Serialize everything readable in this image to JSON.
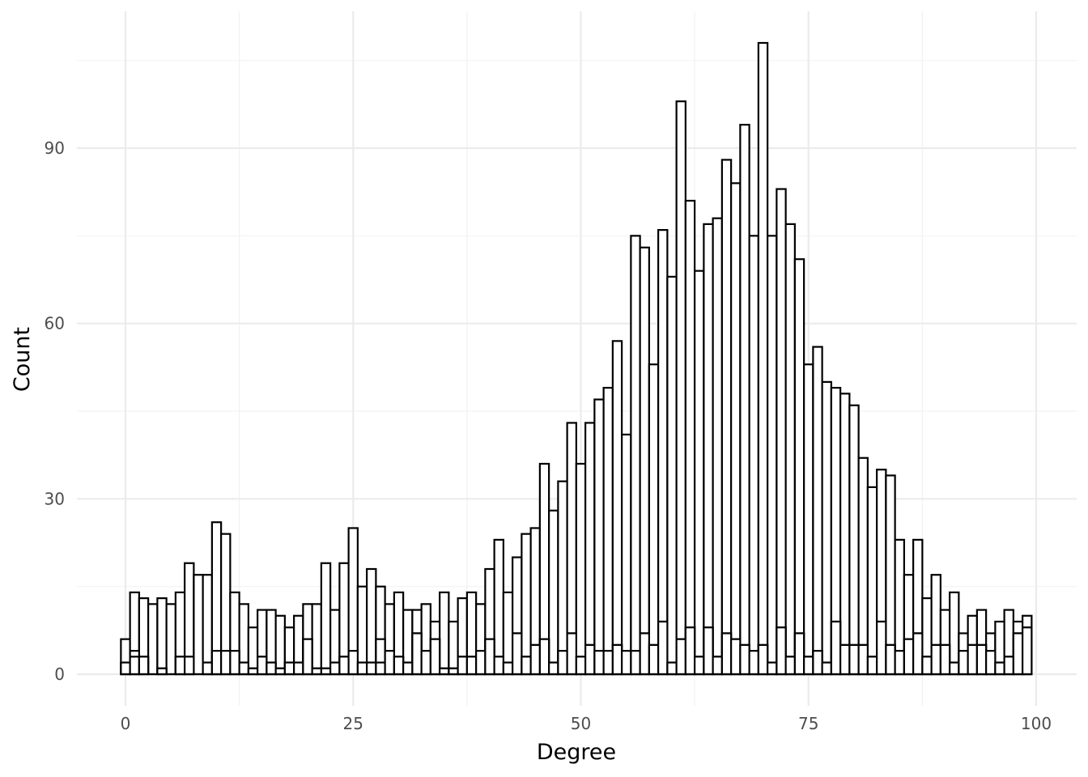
{
  "chart_data": {
    "type": "bar",
    "xlabel": "Degree",
    "ylabel": "Count",
    "xlim": [
      -5,
      102
    ],
    "ylim": [
      -4.5,
      113
    ],
    "x_ticks": [
      0,
      25,
      50,
      75,
      100
    ],
    "y_ticks": [
      0,
      30,
      60,
      90
    ],
    "x_minor_ticks": [
      12.5,
      37.5,
      62.5,
      87.5
    ],
    "y_minor_ticks": [
      15,
      45,
      75,
      105
    ],
    "x_tick_labels": [
      "0",
      "25",
      "50",
      "75",
      "100"
    ],
    "y_tick_labels": [
      "0",
      "30",
      "60",
      "90"
    ],
    "grid": true,
    "bar_fill": "#ffffff",
    "bar_outline": "#000000",
    "bin_width": 1,
    "x": [
      0,
      1,
      2,
      3,
      4,
      5,
      6,
      7,
      8,
      9,
      10,
      11,
      12,
      13,
      14,
      15,
      16,
      17,
      18,
      19,
      20,
      21,
      22,
      23,
      24,
      25,
      26,
      27,
      28,
      29,
      30,
      31,
      32,
      33,
      34,
      35,
      36,
      37,
      38,
      39,
      40,
      41,
      42,
      43,
      44,
      45,
      46,
      47,
      48,
      49,
      50,
      51,
      52,
      53,
      54,
      55,
      56,
      57,
      58,
      59,
      60,
      61,
      62,
      63,
      64,
      65,
      66,
      67,
      68,
      69,
      70,
      71,
      72,
      73,
      74,
      75,
      76,
      77,
      78,
      79,
      80,
      81,
      82,
      83,
      84,
      85,
      86,
      87,
      88,
      89,
      90,
      91,
      92,
      93,
      94,
      95,
      96,
      97,
      98,
      99
    ],
    "series": [
      {
        "values": [
          6,
          14,
          13,
          12,
          13,
          12,
          14,
          19,
          17,
          17,
          26,
          24,
          14,
          12,
          8,
          11,
          11,
          10,
          8,
          10,
          12,
          12,
          19,
          11,
          19,
          25,
          15,
          18,
          15,
          12,
          14,
          11,
          11,
          12,
          9,
          14,
          9,
          13,
          14,
          12,
          18,
          23,
          14,
          20,
          24,
          25,
          36,
          28,
          33,
          43,
          36,
          43,
          47,
          49,
          57,
          41,
          75,
          73,
          53,
          76,
          68,
          98,
          81,
          69,
          77,
          78,
          88,
          84,
          94,
          75,
          108,
          75,
          83,
          77,
          71,
          53,
          56,
          50,
          49,
          48,
          46,
          37,
          32,
          35,
          34,
          23,
          17,
          23,
          13,
          17,
          11,
          14,
          7,
          10,
          11,
          7,
          9,
          11,
          9,
          10
        ]
      },
      {
        "values": [
          2,
          4,
          3,
          0,
          1,
          0,
          3,
          3,
          0,
          2,
          4,
          4,
          4,
          2,
          1,
          3,
          2,
          1,
          2,
          2,
          6,
          1,
          1,
          2,
          3,
          4,
          2,
          2,
          6,
          4,
          3,
          2,
          7,
          4,
          6,
          1,
          1,
          3,
          3,
          4,
          6,
          3,
          2,
          7,
          3,
          5,
          6,
          2,
          4,
          7,
          3,
          5,
          4,
          4,
          5,
          4,
          4,
          7,
          5,
          9,
          2,
          6,
          8,
          3,
          8,
          3,
          7,
          6,
          5,
          4,
          5,
          2,
          8,
          3,
          7,
          3,
          4,
          2,
          9,
          5,
          5,
          5,
          3,
          9,
          5,
          4,
          6,
          7,
          3,
          5,
          5,
          2,
          4,
          5,
          5,
          4,
          2,
          3,
          7,
          8
        ]
      },
      {
        "values": [
          0,
          0,
          0,
          0,
          0,
          0,
          0,
          0,
          0,
          0,
          0,
          0,
          0,
          0,
          0,
          0,
          0,
          0,
          0,
          0,
          0,
          0,
          0,
          0,
          0,
          0,
          0,
          1,
          0,
          0,
          0,
          0,
          0,
          0,
          0,
          0,
          0,
          0,
          0,
          0,
          0,
          0,
          0,
          0,
          0,
          0,
          0,
          0,
          0,
          0,
          0,
          0,
          0,
          0,
          0,
          0,
          0,
          0,
          0,
          0,
          0,
          0,
          0,
          0,
          0,
          0,
          0,
          0,
          0,
          0,
          0,
          0,
          0,
          0,
          0,
          0,
          0,
          0,
          0,
          0,
          0,
          0,
          0,
          0,
          0,
          0,
          0,
          0,
          0,
          0,
          0,
          0,
          0,
          0,
          0,
          0,
          0,
          0,
          0,
          0
        ]
      },
      {
        "values": [
          0,
          0,
          0,
          0,
          0,
          0,
          0,
          0,
          0,
          0,
          0,
          0,
          0,
          0,
          0,
          0,
          0,
          0,
          0,
          0,
          0,
          0,
          0,
          0,
          0,
          0,
          0,
          0,
          0,
          0,
          0,
          0,
          0,
          0,
          0,
          0,
          0,
          0,
          0,
          0,
          0,
          0,
          0,
          0,
          0,
          0,
          0,
          0,
          0,
          0,
          0,
          0,
          0,
          0,
          0,
          0,
          0,
          0,
          0,
          0,
          0,
          0,
          0,
          0,
          0,
          0,
          0,
          0,
          0,
          0,
          0,
          0,
          0,
          0,
          0,
          0,
          0,
          0,
          0,
          0,
          0,
          0,
          0,
          0,
          0,
          0,
          0,
          0,
          0,
          0,
          0,
          0,
          0,
          0,
          0,
          0,
          0,
          0,
          0,
          0
        ]
      }
    ],
    "low_series": {
      "values": [
        0,
        0,
        0,
        0,
        0,
        0,
        0,
        0,
        0,
        0,
        0,
        0,
        0,
        0,
        0,
        0,
        0,
        0,
        0,
        0,
        0,
        0,
        0,
        0,
        0,
        0,
        0,
        0,
        0,
        0,
        0,
        0,
        0,
        0,
        0,
        0,
        0,
        0,
        0,
        0,
        0,
        0,
        0,
        0,
        0,
        0,
        0,
        0,
        0,
        0,
        0,
        0,
        0,
        0,
        0,
        0,
        0,
        0,
        0,
        0,
        0,
        0,
        0,
        0,
        0,
        0,
        0,
        0,
        0,
        0,
        0,
        0,
        0,
        0,
        0,
        0,
        0,
        0,
        0,
        0,
        0,
        0,
        0,
        0,
        0,
        0,
        0,
        0,
        0,
        0,
        0,
        0,
        0,
        0,
        0,
        0,
        0,
        0,
        0,
        0
      ]
    },
    "third_series": {
      "values": [
        2,
        3,
        3,
        0,
        1,
        0,
        3,
        3,
        0,
        2,
        4,
        4,
        4,
        2,
        1,
        3,
        2,
        1,
        2,
        2,
        6,
        1,
        1,
        2,
        3,
        4,
        2,
        2,
        2,
        4,
        3,
        2,
        7,
        4,
        6,
        1,
        1,
        3,
        3,
        4,
        6,
        3,
        2,
        7,
        3,
        5,
        6,
        2,
        4,
        7,
        3,
        5,
        4,
        4,
        5,
        4,
        4,
        7,
        5,
        9,
        2,
        6,
        8,
        3,
        8,
        3,
        7,
        6,
        5,
        4,
        5,
        2,
        8,
        3,
        7,
        3,
        4,
        2,
        9,
        5,
        5,
        5,
        3,
        9,
        5,
        4,
        6,
        7,
        3,
        5,
        5,
        2,
        4,
        5,
        5,
        4,
        2,
        3,
        7,
        8
      ]
    }
  }
}
